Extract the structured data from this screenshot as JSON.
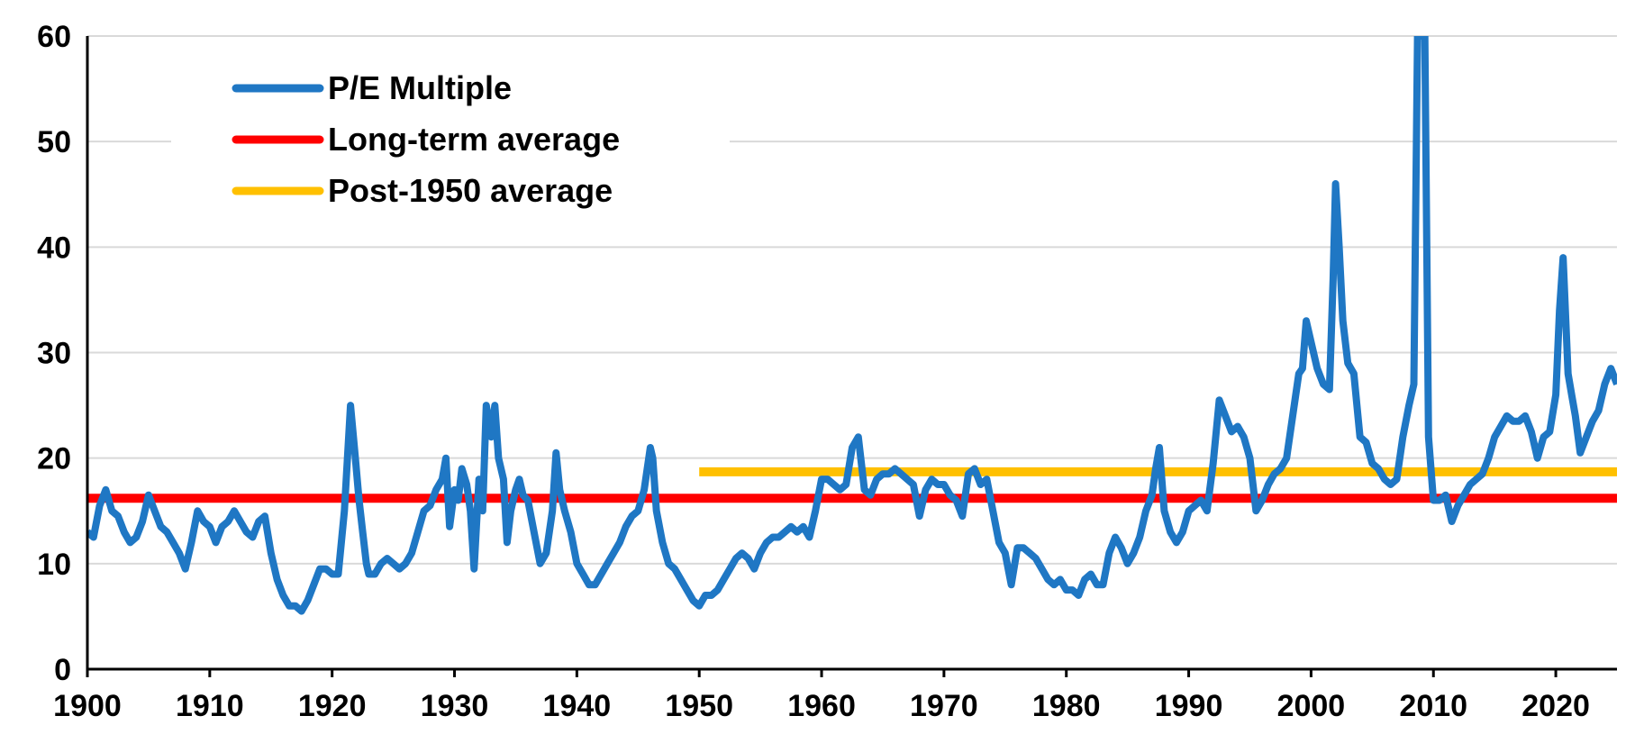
{
  "chart_data": {
    "type": "line",
    "title": "",
    "xlabel": "",
    "ylabel": "",
    "xlim": [
      1900,
      2025
    ],
    "ylim": [
      0,
      60
    ],
    "x_ticks": [
      1900,
      1910,
      1920,
      1930,
      1940,
      1950,
      1960,
      1970,
      1980,
      1990,
      2000,
      2010,
      2020
    ],
    "y_ticks": [
      0,
      10,
      20,
      30,
      40,
      50,
      60
    ],
    "grid": "horizontal",
    "legend_position": "top-left",
    "colors": {
      "pe": "#1f77c4",
      "long_term": "#ff0000",
      "post_1950": "#ffc000",
      "grid": "#d9d9d9",
      "axis": "#000000"
    },
    "series": [
      {
        "name": "P/E Multiple",
        "x": [
          1900,
          1900.5,
          1901,
          1901.5,
          1902,
          1902.5,
          1903,
          1903.5,
          1904,
          1904.5,
          1905,
          1905.5,
          1906,
          1906.5,
          1907,
          1907.5,
          1908,
          1908.5,
          1909,
          1909.5,
          1910,
          1910.5,
          1911,
          1911.5,
          1912,
          1912.5,
          1913,
          1913.5,
          1914,
          1914.5,
          1915,
          1915.5,
          1916,
          1916.5,
          1917,
          1917.5,
          1918,
          1918.5,
          1919,
          1919.5,
          1920,
          1920.5,
          1921,
          1921.5,
          1921.9,
          1922.2,
          1922.5,
          1922.8,
          1923,
          1923.5,
          1924,
          1924.5,
          1925,
          1925.5,
          1926,
          1926.5,
          1927,
          1927.5,
          1928,
          1928.5,
          1929,
          1929.3,
          1929.6,
          1930,
          1930.3,
          1930.6,
          1931,
          1931.3,
          1931.6,
          1932,
          1932.3,
          1932.6,
          1933,
          1933.3,
          1933.6,
          1934,
          1934.3,
          1934.6,
          1935,
          1935.3,
          1935.6,
          1936,
          1936.5,
          1937,
          1937.5,
          1938,
          1938.3,
          1938.6,
          1939,
          1939.5,
          1940,
          1940.5,
          1941,
          1941.5,
          1942,
          1942.5,
          1943,
          1943.5,
          1944,
          1944.5,
          1945,
          1945.5,
          1946,
          1946.2,
          1946.5,
          1947,
          1947.5,
          1948,
          1948.5,
          1949,
          1949.5,
          1950,
          1950.5,
          1951,
          1951.5,
          1952,
          1952.5,
          1953,
          1953.5,
          1954,
          1954.5,
          1955,
          1955.5,
          1956,
          1956.5,
          1957,
          1957.5,
          1958,
          1958.5,
          1959,
          1959.5,
          1960,
          1960.5,
          1961,
          1961.5,
          1962,
          1962.5,
          1963,
          1963.5,
          1964,
          1964.5,
          1965,
          1965.5,
          1966,
          1966.5,
          1967,
          1967.5,
          1968,
          1968.5,
          1969,
          1969.5,
          1970,
          1970.5,
          1971,
          1971.5,
          1972,
          1972.5,
          1973,
          1973.5,
          1974,
          1974.5,
          1975,
          1975.5,
          1976,
          1976.5,
          1977,
          1977.5,
          1978,
          1978.5,
          1979,
          1979.5,
          1980,
          1980.5,
          1981,
          1981.5,
          1982,
          1982.5,
          1983,
          1983.5,
          1984,
          1984.5,
          1985,
          1985.5,
          1986,
          1986.5,
          1987,
          1987.3,
          1987.6,
          1988,
          1988.5,
          1989,
          1989.5,
          1990,
          1990.5,
          1991,
          1991.5,
          1992,
          1992.5,
          1993,
          1993.5,
          1994,
          1994.5,
          1995,
          1995.5,
          1996,
          1996.5,
          1997,
          1997.5,
          1998,
          1998.5,
          1999,
          1999.3,
          1999.6,
          2000,
          2000.5,
          2001,
          2001.5,
          2001.8,
          2002,
          2002.3,
          2002.6,
          2003,
          2003.5,
          2004,
          2004.5,
          2005,
          2005.5,
          2006,
          2006.5,
          2007,
          2007.5,
          2008,
          2008.4,
          2008.7,
          2009,
          2009.3,
          2009.6,
          2010,
          2010.5,
          2011,
          2011.5,
          2012,
          2012.5,
          2013,
          2013.5,
          2014,
          2014.5,
          2015,
          2015.5,
          2016,
          2016.5,
          2017,
          2017.5,
          2018,
          2018.5,
          2019,
          2019.5,
          2020,
          2020.3,
          2020.6,
          2021,
          2021.3,
          2021.6,
          2022,
          2022.5,
          2023,
          2023.5,
          2024,
          2024.5,
          2025
        ],
        "values": [
          13,
          12.5,
          15.5,
          17,
          15,
          14.5,
          13,
          12,
          12.5,
          14,
          16.5,
          15,
          13.5,
          13,
          12,
          11,
          9.5,
          12,
          15,
          14,
          13.5,
          12,
          13.5,
          14,
          15,
          14,
          13,
          12.5,
          14,
          14.5,
          11,
          8.5,
          7,
          6,
          6,
          5.5,
          6.5,
          8,
          9.5,
          9.5,
          9,
          9,
          15,
          25,
          20,
          16,
          13,
          10,
          9,
          9,
          10,
          10.5,
          10,
          9.5,
          10,
          11,
          13,
          15,
          15.5,
          17,
          18,
          20,
          13.5,
          17,
          16,
          19,
          17.5,
          15,
          9.5,
          18,
          15,
          25,
          22,
          25,
          20,
          18,
          12,
          15,
          17,
          18,
          16.5,
          16,
          13,
          10,
          11,
          15,
          20.5,
          17,
          15,
          13,
          10,
          9,
          8,
          8,
          9,
          10,
          11,
          12,
          13.5,
          14.5,
          15,
          17,
          21,
          20,
          15,
          12,
          10,
          9.5,
          8.5,
          7.5,
          6.5,
          6,
          7,
          7,
          7.5,
          8.5,
          9.5,
          10.5,
          11,
          10.5,
          9.5,
          11,
          12,
          12.5,
          12.5,
          13,
          13.5,
          13,
          13.5,
          12.5,
          15,
          18,
          18,
          17.5,
          17,
          17.5,
          21,
          22,
          17,
          16.5,
          18,
          18.5,
          18.5,
          19,
          18.5,
          18,
          17.5,
          14.5,
          17,
          18,
          17.5,
          17.5,
          16.5,
          16,
          14.5,
          18.5,
          19,
          17.5,
          18,
          15,
          12,
          11,
          8,
          11.5,
          11.5,
          11,
          10.5,
          9.5,
          8.5,
          8,
          8.5,
          7.5,
          7.5,
          7,
          8.5,
          9,
          8,
          8,
          11,
          12.5,
          11.5,
          10,
          11,
          12.5,
          15,
          16.5,
          19,
          21,
          15,
          13,
          12,
          13,
          15,
          15.5,
          16,
          15,
          19.5,
          25.5,
          24,
          22.5,
          23,
          22,
          20,
          15,
          16,
          17.5,
          18.5,
          19,
          20,
          24,
          28,
          28.5,
          33,
          31,
          28.5,
          27,
          26.5,
          37,
          46,
          40,
          33,
          29,
          28,
          22,
          21.5,
          19.5,
          19,
          18,
          17.5,
          18,
          22,
          25,
          27,
          60,
          60,
          60,
          22,
          16,
          16,
          16.5,
          14,
          15.5,
          16.5,
          17.5,
          18,
          18.5,
          20,
          22,
          23,
          24,
          23.5,
          23.5,
          24,
          22.5,
          20,
          22,
          22.5,
          26,
          34,
          39,
          28,
          26,
          24,
          20.5,
          22,
          23.5,
          24.5,
          27,
          28.5,
          27
        ]
      },
      {
        "name": "Long-term average",
        "x": [
          1900,
          2025
        ],
        "values": [
          16.2,
          16.2
        ]
      },
      {
        "name": "Post-1950 average",
        "x": [
          1950,
          2025
        ],
        "values": [
          18.7,
          18.7
        ]
      }
    ]
  }
}
